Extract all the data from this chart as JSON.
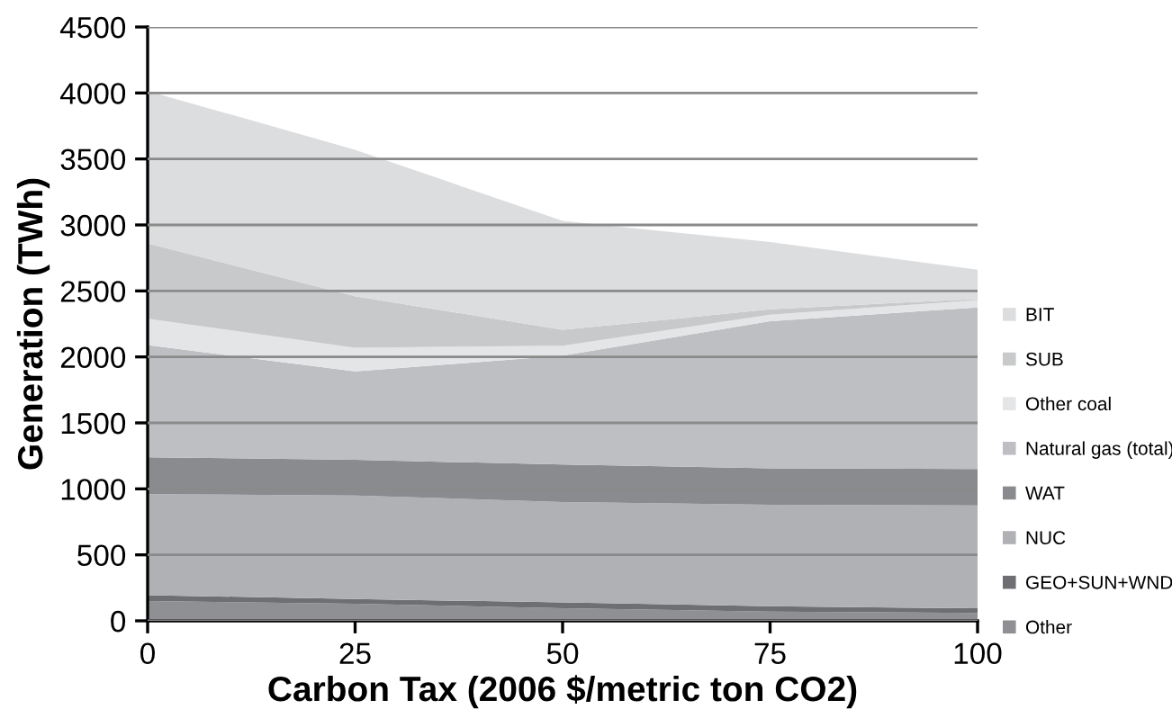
{
  "chart_data": {
    "type": "area",
    "stacked": true,
    "xlabel": "Carbon Tax (2006 $/metric ton CO2)",
    "ylabel": "Generation (TWh)",
    "x": [
      0,
      25,
      50,
      75,
      100
    ],
    "series": [
      {
        "name": "Other",
        "color": "#8f9093",
        "values": [
          150,
          130,
          95,
          70,
          60
        ]
      },
      {
        "name": "GEO+SUN+WND",
        "color": "#6e6f72",
        "values": [
          45,
          35,
          45,
          40,
          35
        ]
      },
      {
        "name": "NUC",
        "color": "#b0b1b4",
        "values": [
          765,
          785,
          760,
          770,
          780
        ]
      },
      {
        "name": "WAT",
        "color": "#8a8b8f",
        "values": [
          280,
          270,
          285,
          275,
          275
        ]
      },
      {
        "name": "Natural gas (total)",
        "color": "#bebfc2",
        "values": [
          850,
          670,
          825,
          1115,
          1225
        ]
      },
      {
        "name": "Other coal",
        "color": "#e4e5e7",
        "values": [
          200,
          180,
          75,
          50,
          55
        ]
      },
      {
        "name": "SUB",
        "color": "#c8c9cb",
        "values": [
          570,
          390,
          120,
          40,
          10
        ]
      },
      {
        "name": "BIT",
        "color": "#dcdddf",
        "values": [
          1155,
          1110,
          825,
          510,
          220
        ]
      }
    ],
    "xlim": [
      0,
      100
    ],
    "xticks": [
      0,
      25,
      50,
      75,
      100
    ],
    "ylim": [
      0,
      4500
    ],
    "yticks": [
      0,
      500,
      1000,
      1500,
      2000,
      2500,
      3000,
      3500,
      4000,
      4500
    ],
    "grid": "y",
    "legend": "right"
  }
}
